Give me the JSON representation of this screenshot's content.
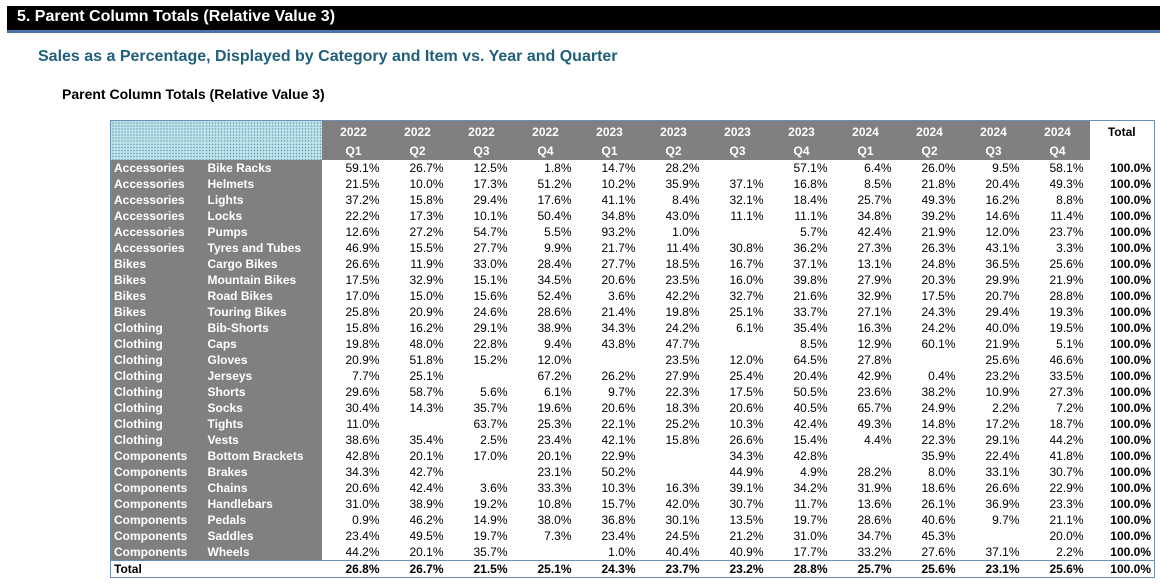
{
  "section_title": "5. Parent Column Totals (Relative Value 3)",
  "subtitle": "Sales as a Percentage, Displayed by Category and Item vs. Year and Quarter",
  "table_title": "Parent Column Totals (Relative Value 3)",
  "columns": [
    {
      "year": "2022",
      "quarter": "Q1"
    },
    {
      "year": "2022",
      "quarter": "Q2"
    },
    {
      "year": "2022",
      "quarter": "Q3"
    },
    {
      "year": "2022",
      "quarter": "Q4"
    },
    {
      "year": "2023",
      "quarter": "Q1"
    },
    {
      "year": "2023",
      "quarter": "Q2"
    },
    {
      "year": "2023",
      "quarter": "Q3"
    },
    {
      "year": "2023",
      "quarter": "Q4"
    },
    {
      "year": "2024",
      "quarter": "Q1"
    },
    {
      "year": "2024",
      "quarter": "Q2"
    },
    {
      "year": "2024",
      "quarter": "Q3"
    },
    {
      "year": "2024",
      "quarter": "Q4"
    }
  ],
  "total_label": "Total",
  "rows": [
    {
      "category": "Accessories",
      "item": "Bike Racks",
      "values": [
        "59.1%",
        "26.7%",
        "12.5%",
        "1.8%",
        "14.7%",
        "28.2%",
        "",
        "57.1%",
        "6.4%",
        "26.0%",
        "9.5%",
        "58.1%"
      ],
      "total": "100.0%"
    },
    {
      "category": "Accessories",
      "item": "Helmets",
      "values": [
        "21.5%",
        "10.0%",
        "17.3%",
        "51.2%",
        "10.2%",
        "35.9%",
        "37.1%",
        "16.8%",
        "8.5%",
        "21.8%",
        "20.4%",
        "49.3%"
      ],
      "total": "100.0%"
    },
    {
      "category": "Accessories",
      "item": "Lights",
      "values": [
        "37.2%",
        "15.8%",
        "29.4%",
        "17.6%",
        "41.1%",
        "8.4%",
        "32.1%",
        "18.4%",
        "25.7%",
        "49.3%",
        "16.2%",
        "8.8%"
      ],
      "total": "100.0%"
    },
    {
      "category": "Accessories",
      "item": "Locks",
      "values": [
        "22.2%",
        "17.3%",
        "10.1%",
        "50.4%",
        "34.8%",
        "43.0%",
        "11.1%",
        "11.1%",
        "34.8%",
        "39.2%",
        "14.6%",
        "11.4%"
      ],
      "total": "100.0%"
    },
    {
      "category": "Accessories",
      "item": "Pumps",
      "values": [
        "12.6%",
        "27.2%",
        "54.7%",
        "5.5%",
        "93.2%",
        "1.0%",
        "",
        "5.7%",
        "42.4%",
        "21.9%",
        "12.0%",
        "23.7%"
      ],
      "total": "100.0%"
    },
    {
      "category": "Accessories",
      "item": "Tyres and Tubes",
      "values": [
        "46.9%",
        "15.5%",
        "27.7%",
        "9.9%",
        "21.7%",
        "11.4%",
        "30.8%",
        "36.2%",
        "27.3%",
        "26.3%",
        "43.1%",
        "3.3%"
      ],
      "total": "100.0%"
    },
    {
      "category": "Bikes",
      "item": "Cargo Bikes",
      "values": [
        "26.6%",
        "11.9%",
        "33.0%",
        "28.4%",
        "27.7%",
        "18.5%",
        "16.7%",
        "37.1%",
        "13.1%",
        "24.8%",
        "36.5%",
        "25.6%"
      ],
      "total": "100.0%"
    },
    {
      "category": "Bikes",
      "item": "Mountain Bikes",
      "values": [
        "17.5%",
        "32.9%",
        "15.1%",
        "34.5%",
        "20.6%",
        "23.5%",
        "16.0%",
        "39.8%",
        "27.9%",
        "20.3%",
        "29.9%",
        "21.9%"
      ],
      "total": "100.0%"
    },
    {
      "category": "Bikes",
      "item": "Road Bikes",
      "values": [
        "17.0%",
        "15.0%",
        "15.6%",
        "52.4%",
        "3.6%",
        "42.2%",
        "32.7%",
        "21.6%",
        "32.9%",
        "17.5%",
        "20.7%",
        "28.8%"
      ],
      "total": "100.0%"
    },
    {
      "category": "Bikes",
      "item": "Touring Bikes",
      "values": [
        "25.8%",
        "20.9%",
        "24.6%",
        "28.6%",
        "21.4%",
        "19.8%",
        "25.1%",
        "33.7%",
        "27.1%",
        "24.3%",
        "29.4%",
        "19.3%"
      ],
      "total": "100.0%"
    },
    {
      "category": "Clothing",
      "item": "Bib-Shorts",
      "values": [
        "15.8%",
        "16.2%",
        "29.1%",
        "38.9%",
        "34.3%",
        "24.2%",
        "6.1%",
        "35.4%",
        "16.3%",
        "24.2%",
        "40.0%",
        "19.5%"
      ],
      "total": "100.0%"
    },
    {
      "category": "Clothing",
      "item": "Caps",
      "values": [
        "19.8%",
        "48.0%",
        "22.8%",
        "9.4%",
        "43.8%",
        "47.7%",
        "",
        "8.5%",
        "12.9%",
        "60.1%",
        "21.9%",
        "5.1%"
      ],
      "total": "100.0%"
    },
    {
      "category": "Clothing",
      "item": "Gloves",
      "values": [
        "20.9%",
        "51.8%",
        "15.2%",
        "12.0%",
        "",
        "23.5%",
        "12.0%",
        "64.5%",
        "27.8%",
        "",
        "25.6%",
        "46.6%"
      ],
      "total": "100.0%"
    },
    {
      "category": "Clothing",
      "item": "Jerseys",
      "values": [
        "7.7%",
        "25.1%",
        "",
        "67.2%",
        "26.2%",
        "27.9%",
        "25.4%",
        "20.4%",
        "42.9%",
        "0.4%",
        "23.2%",
        "33.5%"
      ],
      "total": "100.0%"
    },
    {
      "category": "Clothing",
      "item": "Shorts",
      "values": [
        "29.6%",
        "58.7%",
        "5.6%",
        "6.1%",
        "9.7%",
        "22.3%",
        "17.5%",
        "50.5%",
        "23.6%",
        "38.2%",
        "10.9%",
        "27.3%"
      ],
      "total": "100.0%"
    },
    {
      "category": "Clothing",
      "item": "Socks",
      "values": [
        "30.4%",
        "14.3%",
        "35.7%",
        "19.6%",
        "20.6%",
        "18.3%",
        "20.6%",
        "40.5%",
        "65.7%",
        "24.9%",
        "2.2%",
        "7.2%"
      ],
      "total": "100.0%"
    },
    {
      "category": "Clothing",
      "item": "Tights",
      "values": [
        "11.0%",
        "",
        "63.7%",
        "25.3%",
        "22.1%",
        "25.2%",
        "10.3%",
        "42.4%",
        "49.3%",
        "14.8%",
        "17.2%",
        "18.7%"
      ],
      "total": "100.0%"
    },
    {
      "category": "Clothing",
      "item": "Vests",
      "values": [
        "38.6%",
        "35.4%",
        "2.5%",
        "23.4%",
        "42.1%",
        "15.8%",
        "26.6%",
        "15.4%",
        "4.4%",
        "22.3%",
        "29.1%",
        "44.2%"
      ],
      "total": "100.0%"
    },
    {
      "category": "Components",
      "item": "Bottom Brackets",
      "values": [
        "42.8%",
        "20.1%",
        "17.0%",
        "20.1%",
        "22.9%",
        "",
        "34.3%",
        "42.8%",
        "",
        "35.9%",
        "22.4%",
        "41.8%"
      ],
      "total": "100.0%"
    },
    {
      "category": "Components",
      "item": "Brakes",
      "values": [
        "34.3%",
        "42.7%",
        "",
        "23.1%",
        "50.2%",
        "",
        "44.9%",
        "4.9%",
        "28.2%",
        "8.0%",
        "33.1%",
        "30.7%"
      ],
      "total": "100.0%"
    },
    {
      "category": "Components",
      "item": "Chains",
      "values": [
        "20.6%",
        "42.4%",
        "3.6%",
        "33.3%",
        "10.3%",
        "16.3%",
        "39.1%",
        "34.2%",
        "31.9%",
        "18.6%",
        "26.6%",
        "22.9%"
      ],
      "total": "100.0%"
    },
    {
      "category": "Components",
      "item": "Handlebars",
      "values": [
        "31.0%",
        "38.9%",
        "19.2%",
        "10.8%",
        "15.7%",
        "42.0%",
        "30.7%",
        "11.7%",
        "13.6%",
        "26.1%",
        "36.9%",
        "23.3%"
      ],
      "total": "100.0%"
    },
    {
      "category": "Components",
      "item": "Pedals",
      "values": [
        "0.9%",
        "46.2%",
        "14.9%",
        "38.0%",
        "36.8%",
        "30.1%",
        "13.5%",
        "19.7%",
        "28.6%",
        "40.6%",
        "9.7%",
        "21.1%"
      ],
      "total": "100.0%"
    },
    {
      "category": "Components",
      "item": "Saddles",
      "values": [
        "23.4%",
        "49.5%",
        "19.7%",
        "7.3%",
        "23.4%",
        "24.5%",
        "21.2%",
        "31.0%",
        "34.7%",
        "45.3%",
        "",
        "20.0%"
      ],
      "total": "100.0%"
    },
    {
      "category": "Components",
      "item": "Wheels",
      "values": [
        "44.2%",
        "20.1%",
        "35.7%",
        "",
        "1.0%",
        "40.4%",
        "40.9%",
        "17.7%",
        "33.2%",
        "27.6%",
        "37.1%",
        "2.2%"
      ],
      "total": "100.0%"
    }
  ],
  "total_row": {
    "label": "Total",
    "values": [
      "26.8%",
      "26.7%",
      "21.5%",
      "25.1%",
      "24.3%",
      "23.7%",
      "23.2%",
      "28.8%",
      "25.7%",
      "25.6%",
      "23.1%",
      "25.6%"
    ],
    "total": "100.0%"
  },
  "colors": {
    "header_bg": "#808080",
    "section_bar": "#000000",
    "section_rule": "#4a74a8",
    "subtitle_text": "#1f5f7a",
    "corner_fill": "#bde4ec"
  }
}
